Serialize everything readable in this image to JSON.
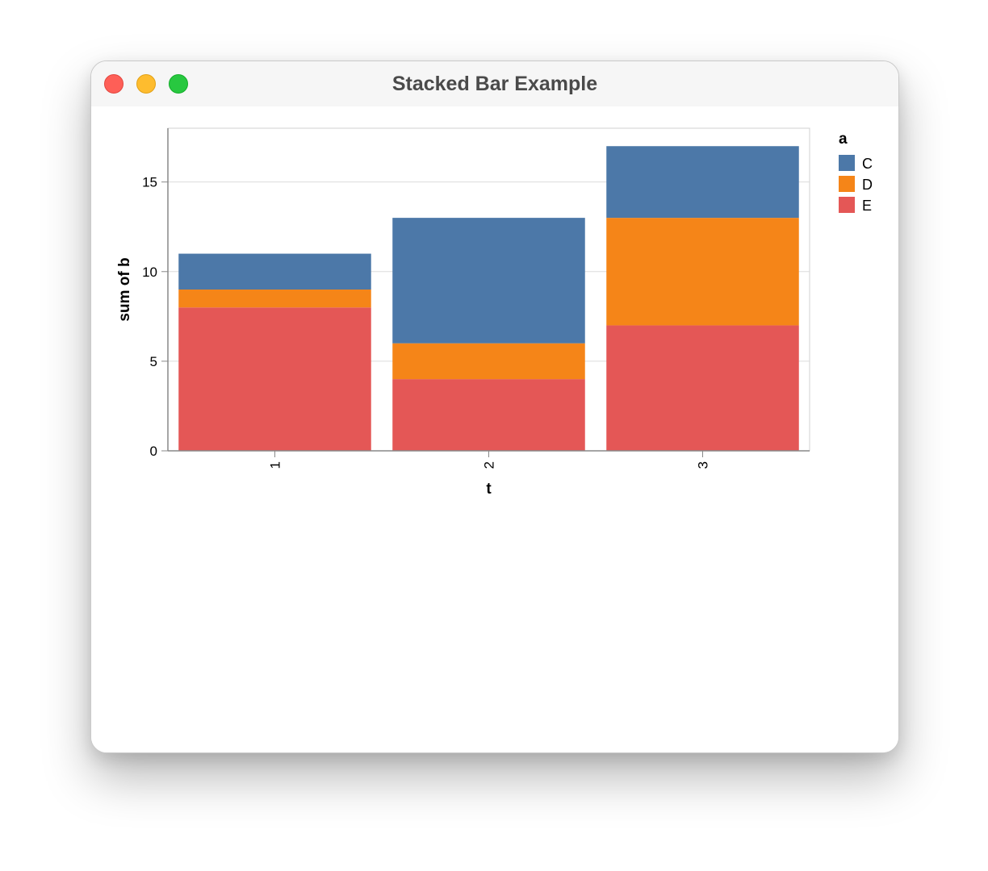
{
  "window": {
    "title": "Stacked Bar Example"
  },
  "chart_data": {
    "type": "bar",
    "stacked": true,
    "title": "",
    "xlabel": "t",
    "ylabel": "sum of b",
    "categories": [
      "1",
      "2",
      "3"
    ],
    "ylim": [
      0,
      18
    ],
    "yticks": [
      0,
      5,
      10,
      15
    ],
    "grid": true,
    "legend": {
      "title": "a",
      "position": "right"
    },
    "series": [
      {
        "name": "E",
        "color": "#e45756",
        "values": [
          8,
          4,
          7
        ]
      },
      {
        "name": "D",
        "color": "#f58518",
        "values": [
          1,
          2,
          6
        ]
      },
      {
        "name": "C",
        "color": "#4c78a8",
        "values": [
          2,
          7,
          4
        ]
      }
    ],
    "legend_order": [
      "C",
      "D",
      "E"
    ]
  }
}
